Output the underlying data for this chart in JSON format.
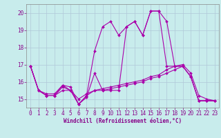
{
  "background_color": "#c8ecec",
  "grid_color": "#b0c8d8",
  "line_color": "#aa00aa",
  "marker": "D",
  "markersize": 2,
  "linewidth": 0.8,
  "xlim": [
    -0.5,
    23.5
  ],
  "ylim": [
    14.5,
    20.5
  ],
  "yticks": [
    15,
    16,
    17,
    18,
    19,
    20
  ],
  "xticks": [
    0,
    1,
    2,
    3,
    4,
    5,
    6,
    7,
    8,
    9,
    10,
    11,
    12,
    13,
    14,
    15,
    16,
    17,
    18,
    19,
    20,
    21,
    22,
    23
  ],
  "xlabel": "Windchill (Refroidissement éolien,°C)",
  "xlabel_fontsize": 5.5,
  "tick_fontsize": 5.5,
  "series": [
    [
      16.9,
      15.5,
      15.2,
      15.2,
      15.8,
      15.5,
      14.7,
      15.1,
      16.5,
      15.5,
      15.5,
      15.5,
      19.2,
      19.5,
      18.7,
      20.1,
      20.1,
      19.5,
      16.9,
      16.9,
      16.3,
      14.9,
      14.9,
      14.9
    ],
    [
      16.9,
      15.5,
      15.2,
      15.2,
      15.7,
      15.5,
      14.7,
      15.2,
      17.8,
      19.2,
      19.5,
      18.7,
      19.2,
      19.5,
      18.7,
      20.1,
      20.1,
      16.9,
      16.9,
      16.9,
      16.3,
      14.9,
      14.9,
      14.9
    ],
    [
      16.9,
      15.5,
      15.3,
      15.3,
      15.8,
      15.7,
      14.7,
      15.2,
      15.5,
      15.5,
      15.6,
      15.7,
      15.8,
      15.9,
      16.0,
      16.2,
      16.3,
      16.5,
      16.7,
      16.9,
      16.3,
      14.9,
      14.9,
      14.9
    ],
    [
      16.9,
      15.5,
      15.2,
      15.2,
      15.5,
      15.5,
      15.0,
      15.3,
      15.5,
      15.6,
      15.7,
      15.8,
      15.9,
      16.0,
      16.1,
      16.3,
      16.4,
      16.7,
      16.9,
      17.0,
      16.5,
      15.2,
      15.0,
      14.9
    ]
  ]
}
